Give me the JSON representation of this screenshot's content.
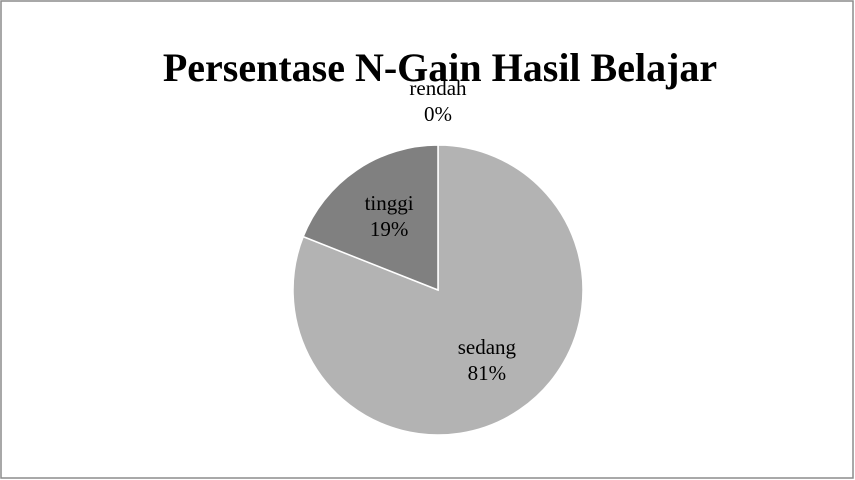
{
  "chart_data": {
    "type": "pie",
    "title": "Persentase N-Gain Hasil Belajar",
    "categories": [
      "rendah",
      "sedang",
      "tinggi"
    ],
    "values": [
      0,
      81,
      19
    ],
    "value_labels": [
      "0%",
      "81%",
      "19%"
    ],
    "colors": [
      "#5a5a5a",
      "#b3b3b3",
      "#808080"
    ]
  }
}
